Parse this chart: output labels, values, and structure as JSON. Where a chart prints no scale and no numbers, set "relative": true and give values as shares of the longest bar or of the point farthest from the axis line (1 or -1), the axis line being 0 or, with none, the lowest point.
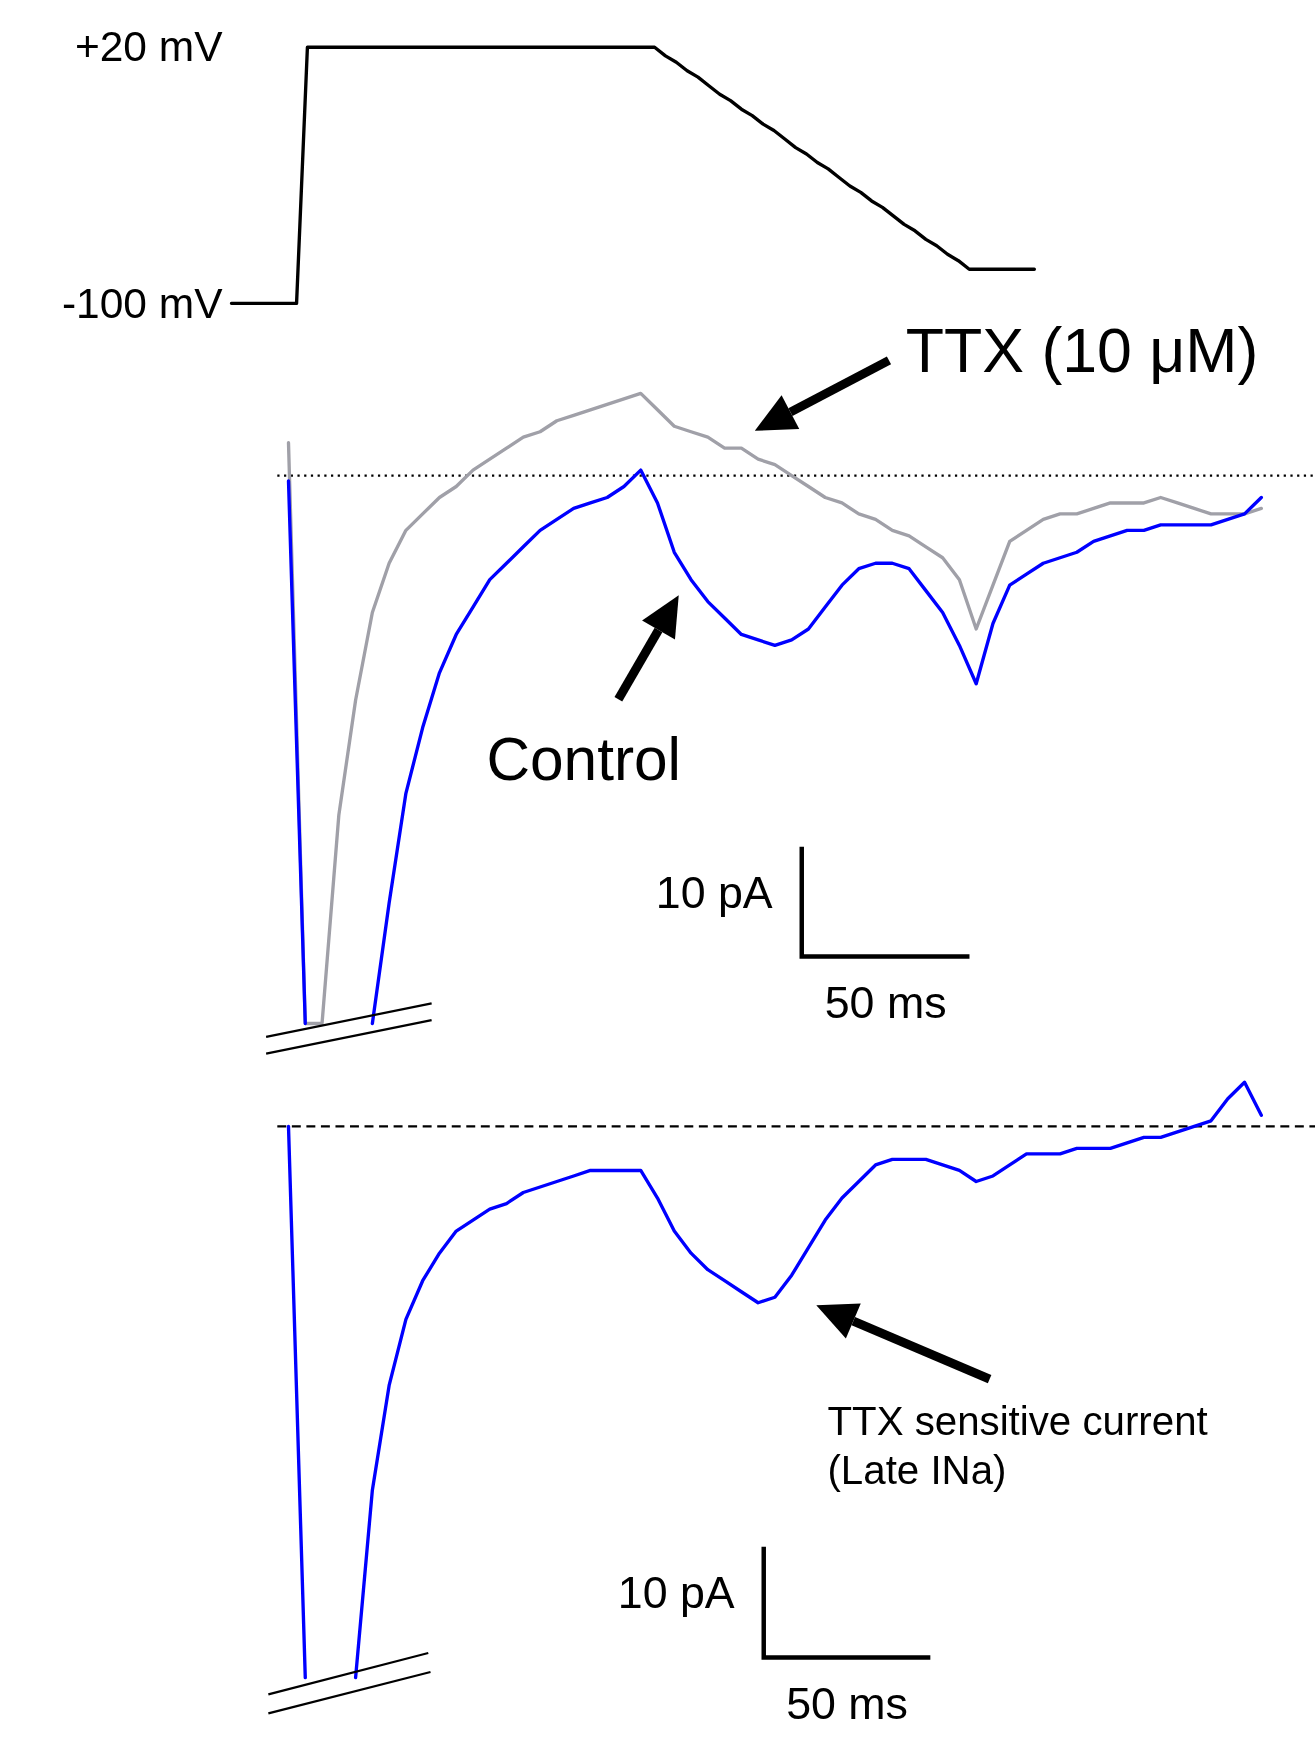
{
  "chart_data": [
    {
      "type": "line",
      "categories": [
        null,
        null,
        null,
        null,
        null,
        null,
        null,
        null,
        null,
        null,
        null,
        null,
        null,
        null,
        null,
        null,
        null,
        null,
        null,
        null,
        null,
        null,
        null,
        null,
        null,
        null,
        null,
        null,
        null,
        null,
        null,
        null,
        null,
        null,
        null,
        null,
        null,
        null,
        null,
        null,
        null,
        null,
        null,
        null,
        null,
        null,
        null,
        null,
        null,
        null,
        null,
        null,
        null,
        null,
        null,
        null,
        null,
        null,
        null,
        null,
        null,
        null,
        null,
        null,
        null,
        null,
        null,
        null,
        null,
        null,
        null,
        null,
        null,
        null,
        null
      ],
      "ylim": [
        -100,
        20
      ],
      "yticks": [
        {
          "value": -100,
          "label": "-100 mV"
        },
        {
          "value": 20,
          "label": "+20 mV"
        }
      ],
      "series": [
        {
          "color": "#000000",
          "values": [
            -100,
            -100,
            -100,
            -100,
            -100,
            -100,
            -100,
            20,
            20,
            20,
            20,
            20,
            20,
            20,
            20,
            20,
            20,
            20,
            20,
            20,
            20,
            20,
            20,
            20,
            20,
            20,
            20,
            20,
            20,
            20,
            20,
            20,
            20,
            20,
            20,
            20,
            20,
            20,
            20,
            20,
            16,
            13,
            9,
            6,
            2,
            -2,
            -5,
            -9,
            -12,
            -16,
            -19,
            -23,
            -27,
            -30,
            -34,
            -37,
            -41,
            -45,
            -48,
            -52,
            -55,
            -59,
            -63,
            -66,
            -70,
            -73,
            -77,
            -80,
            -84,
            -84,
            -84,
            -84,
            -84,
            -84,
            -84
          ]
        }
      ]
    },
    {
      "type": "line",
      "relative": true,
      "categories": [
        null,
        null,
        null,
        null,
        null,
        null,
        null,
        null,
        null,
        null,
        null,
        null,
        null,
        null,
        null,
        null,
        null,
        null,
        null,
        null,
        null,
        null,
        null,
        null,
        null,
        null,
        null,
        null,
        null,
        null,
        null,
        null,
        null,
        null,
        null,
        null,
        null,
        null,
        null,
        null,
        null,
        null,
        null,
        null,
        null,
        null,
        null,
        null,
        null,
        null,
        null,
        null,
        null,
        null,
        null,
        null,
        null,
        null,
        null
      ],
      "ref_lines": [
        {
          "axis": "y",
          "value": 0,
          "line_style": "dotted",
          "color": "#000000"
        }
      ],
      "annotations": [
        "TTX (10 μM)",
        "Control",
        "10 pA",
        "50 ms"
      ],
      "series": [
        {
          "color": "#a0a0a8",
          "values": [
            0.06,
            -1,
            -1,
            -0.62,
            -0.41,
            -0.25,
            -0.16,
            -0.1,
            -0.07,
            -0.04,
            -0.02,
            0.01,
            0.03,
            0.05,
            0.07,
            0.08,
            0.1,
            0.11,
            0.12,
            0.13,
            0.14,
            0.15,
            0.12,
            0.09,
            0.08,
            0.07,
            0.05,
            0.05,
            0.03,
            0.02,
            0,
            -0.02,
            -0.04,
            -0.05,
            -0.07,
            -0.08,
            -0.1,
            -0.11,
            -0.13,
            -0.15,
            -0.19,
            -0.28,
            -0.2,
            -0.12,
            -0.1,
            -0.08,
            -0.07,
            -0.07,
            -0.06,
            -0.05,
            -0.05,
            -0.05,
            -0.04,
            -0.05,
            -0.06,
            -0.07,
            -0.07,
            -0.07,
            -0.06
          ]
        },
        {
          "color": "#0000ff",
          "values": [
            -0.01,
            -1,
            null,
            null,
            null,
            -1,
            -0.78,
            -0.58,
            -0.46,
            -0.36,
            -0.29,
            -0.24,
            -0.19,
            -0.16,
            -0.13,
            -0.1,
            -0.08,
            -0.06,
            -0.05,
            -0.04,
            -0.02,
            0.01,
            -0.05,
            -0.14,
            -0.19,
            -0.23,
            -0.26,
            -0.29,
            -0.3,
            -0.31,
            -0.3,
            -0.28,
            -0.24,
            -0.2,
            -0.17,
            -0.16,
            -0.16,
            -0.17,
            -0.21,
            -0.25,
            -0.31,
            -0.38,
            -0.27,
            -0.2,
            -0.18,
            -0.16,
            -0.15,
            -0.14,
            -0.12,
            -0.11,
            -0.1,
            -0.1,
            -0.09,
            -0.09,
            -0.09,
            -0.09,
            -0.08,
            -0.07,
            -0.04
          ]
        }
      ]
    },
    {
      "type": "line",
      "relative": true,
      "categories": [
        null,
        null,
        null,
        null,
        null,
        null,
        null,
        null,
        null,
        null,
        null,
        null,
        null,
        null,
        null,
        null,
        null,
        null,
        null,
        null,
        null,
        null,
        null,
        null,
        null,
        null,
        null,
        null,
        null,
        null,
        null,
        null,
        null,
        null,
        null,
        null,
        null,
        null,
        null,
        null,
        null,
        null,
        null,
        null,
        null,
        null,
        null,
        null,
        null,
        null,
        null,
        null,
        null,
        null,
        null,
        null,
        null,
        null,
        null
      ],
      "ref_lines": [
        {
          "axis": "y",
          "value": 0,
          "line_style": "dashed",
          "color": "#000000"
        }
      ],
      "annotations": [
        "TTX sensitive current (Late INa)",
        "10 pA",
        "50 ms"
      ],
      "series": [
        {
          "color": "#0000ff",
          "values": [
            0,
            -1,
            null,
            null,
            -1,
            -0.66,
            -0.47,
            -0.35,
            -0.28,
            -0.23,
            -0.19,
            -0.17,
            -0.15,
            -0.14,
            -0.12,
            -0.11,
            -0.1,
            -0.09,
            -0.08,
            -0.08,
            -0.08,
            -0.08,
            -0.13,
            -0.19,
            -0.23,
            -0.26,
            -0.28,
            -0.3,
            -0.32,
            -0.31,
            -0.27,
            -0.22,
            -0.17,
            -0.13,
            -0.1,
            -0.07,
            -0.06,
            -0.06,
            -0.06,
            -0.07,
            -0.08,
            -0.1,
            -0.09,
            -0.07,
            -0.05,
            -0.05,
            -0.05,
            -0.04,
            -0.04,
            -0.04,
            -0.03,
            -0.02,
            -0.02,
            -0.01,
            0,
            0.01,
            0.05,
            0.08,
            0.02
          ]
        }
      ]
    }
  ]
}
